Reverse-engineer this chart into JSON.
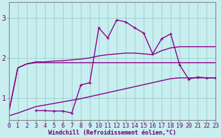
{
  "xlabel": "Windchill (Refroidissement éolien,°C)",
  "bg_color": "#c8eef0",
  "line_color": "#880088",
  "grid_color": "#99cccc",
  "axis_color": "#660066",
  "yticks": [
    1,
    2,
    3
  ],
  "xticks": [
    0,
    1,
    2,
    3,
    4,
    5,
    6,
    7,
    8,
    9,
    10,
    11,
    12,
    13,
    14,
    15,
    16,
    17,
    18,
    19,
    20,
    21,
    22,
    23
  ],
  "ylim": [
    0.45,
    3.4
  ],
  "xlim": [
    0,
    23
  ],
  "series": [
    {
      "x": [
        0,
        1,
        2,
        3,
        4,
        5,
        6,
        7,
        8,
        9,
        10,
        11,
        12,
        13,
        14,
        15,
        16,
        17,
        18,
        19,
        20,
        21,
        22,
        23
      ],
      "y": [
        0.65,
        1.75,
        1.85,
        1.88,
        1.88,
        1.88,
        1.88,
        1.88,
        1.88,
        1.88,
        1.88,
        1.88,
        1.88,
        1.88,
        1.88,
        1.88,
        1.88,
        1.88,
        1.88,
        1.88,
        1.88,
        1.88,
        1.88,
        1.88
      ],
      "marker": null,
      "lw": 1.0
    },
    {
      "x": [
        0,
        1,
        2,
        3,
        4,
        5,
        6,
        7,
        8,
        9,
        10,
        11,
        12,
        13,
        14,
        15,
        16,
        17,
        18,
        19,
        20,
        21,
        22,
        23
      ],
      "y": [
        0.65,
        1.75,
        1.85,
        1.9,
        1.9,
        1.92,
        1.93,
        1.95,
        1.97,
        2.0,
        2.05,
        2.08,
        2.1,
        2.12,
        2.12,
        2.1,
        2.08,
        2.18,
        2.25,
        2.28,
        2.28,
        2.28,
        2.28,
        2.28
      ],
      "marker": null,
      "lw": 1.0
    },
    {
      "x": [
        0,
        1,
        2,
        3,
        4,
        5,
        6,
        7,
        8,
        9,
        10,
        11,
        12,
        13,
        14,
        15,
        16,
        17,
        18,
        19,
        20,
        21,
        22,
        23
      ],
      "y": [
        0.55,
        0.62,
        0.7,
        0.78,
        0.82,
        0.86,
        0.9,
        0.94,
        0.98,
        1.03,
        1.08,
        1.13,
        1.18,
        1.23,
        1.28,
        1.33,
        1.38,
        1.43,
        1.48,
        1.5,
        1.5,
        1.5,
        1.5,
        1.5
      ],
      "marker": null,
      "lw": 1.0
    },
    {
      "x": [
        3,
        4,
        5,
        6,
        7,
        8,
        9,
        10,
        11,
        12,
        13,
        14,
        15,
        16,
        17,
        18,
        19,
        20,
        21,
        22,
        23
      ],
      "y": [
        0.68,
        0.68,
        0.67,
        0.67,
        0.62,
        1.32,
        1.38,
        2.75,
        2.5,
        2.95,
        2.9,
        2.75,
        2.62,
        2.1,
        2.48,
        2.6,
        1.82,
        1.47,
        1.52,
        1.5,
        1.5
      ],
      "marker": "+",
      "lw": 1.0
    }
  ],
  "tick_fontsize": 6,
  "xlabel_fontsize": 6,
  "xlabel_color": "#660066",
  "spine_color": "#888888"
}
